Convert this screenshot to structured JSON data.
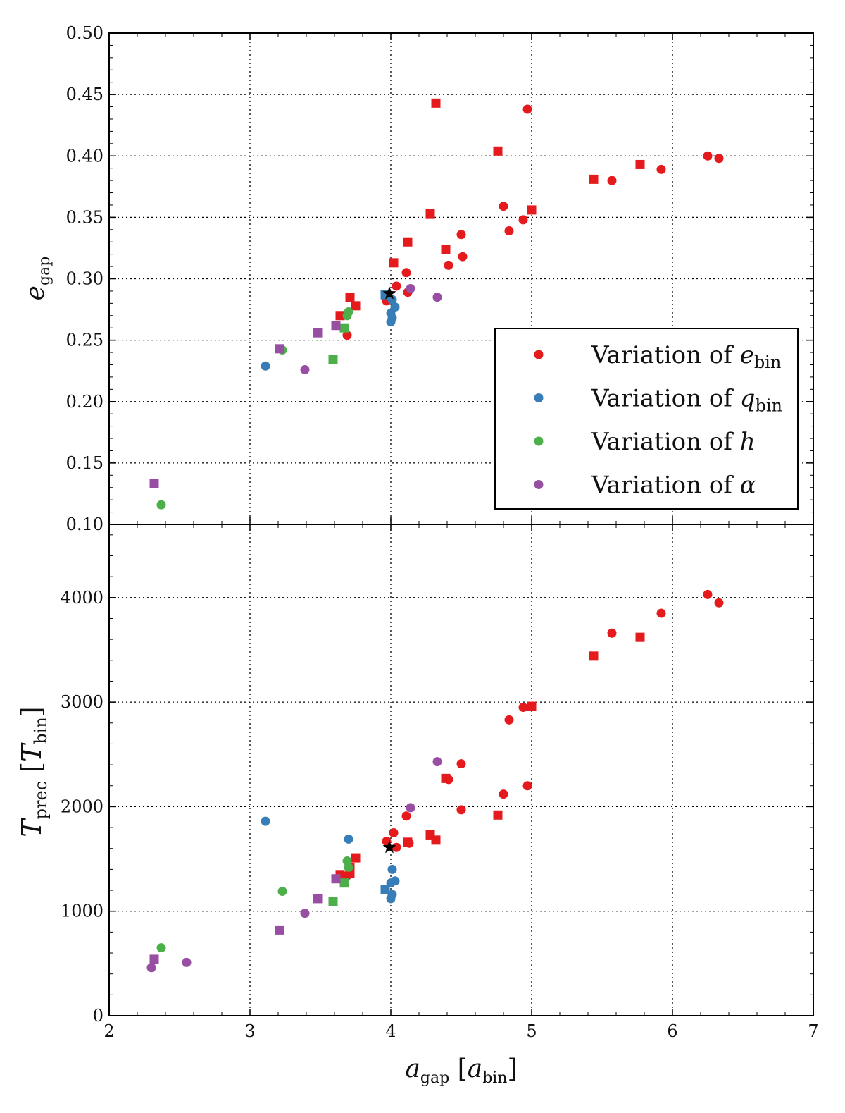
{
  "chart_data": [
    {
      "type": "scatter",
      "panel": "top",
      "xlabel": {
        "main": "a",
        "sub": "gap",
        "bracket_main": "a",
        "bracket_sub": "bin"
      },
      "ylabel": {
        "main": "e",
        "sub": "gap"
      },
      "xlim": [
        2,
        7
      ],
      "ylim": [
        0.1,
        0.5
      ],
      "xticks": [
        2,
        3,
        4,
        5,
        6,
        7
      ],
      "yticks": [
        0.1,
        0.15,
        0.2,
        0.25,
        0.3,
        0.35,
        0.4,
        0.45,
        0.5
      ],
      "ytick_labels": [
        "0.10",
        "0.15",
        "0.20",
        "0.25",
        "0.30",
        "0.35",
        "0.40",
        "0.45",
        "0.50"
      ],
      "grid": true,
      "legend_position": "lower-right",
      "legend": [
        {
          "main": "Variation of ",
          "sym": "e",
          "sub": "bin",
          "color": "#e41a1c"
        },
        {
          "main": "Variation of ",
          "sym": "q",
          "sub": "bin",
          "color": "#377eb8"
        },
        {
          "main": "Variation of ",
          "sym": "h",
          "sub": "",
          "color": "#4daf4a"
        },
        {
          "main": "Variation of ",
          "sym": "α",
          "sub": "",
          "color": "#984ea3"
        }
      ],
      "series": [
        {
          "name": "e_bin",
          "color": "#e41a1c",
          "points": [
            {
              "x": 4.32,
              "y": 0.443,
              "m": "s"
            },
            {
              "x": 4.97,
              "y": 0.438,
              "m": "o"
            },
            {
              "x": 4.76,
              "y": 0.404,
              "m": "s"
            },
            {
              "x": 6.25,
              "y": 0.4,
              "m": "o"
            },
            {
              "x": 6.33,
              "y": 0.398,
              "m": "o"
            },
            {
              "x": 5.77,
              "y": 0.393,
              "m": "s"
            },
            {
              "x": 5.92,
              "y": 0.389,
              "m": "o"
            },
            {
              "x": 5.44,
              "y": 0.381,
              "m": "s"
            },
            {
              "x": 5.57,
              "y": 0.38,
              "m": "o"
            },
            {
              "x": 4.8,
              "y": 0.359,
              "m": "o"
            },
            {
              "x": 5.0,
              "y": 0.356,
              "m": "s"
            },
            {
              "x": 4.28,
              "y": 0.353,
              "m": "s"
            },
            {
              "x": 4.94,
              "y": 0.348,
              "m": "o"
            },
            {
              "x": 4.84,
              "y": 0.339,
              "m": "o"
            },
            {
              "x": 4.5,
              "y": 0.336,
              "m": "o"
            },
            {
              "x": 4.12,
              "y": 0.33,
              "m": "s"
            },
            {
              "x": 4.39,
              "y": 0.324,
              "m": "s"
            },
            {
              "x": 4.51,
              "y": 0.318,
              "m": "o"
            },
            {
              "x": 4.02,
              "y": 0.313,
              "m": "s"
            },
            {
              "x": 4.41,
              "y": 0.311,
              "m": "o"
            },
            {
              "x": 4.11,
              "y": 0.305,
              "m": "o"
            },
            {
              "x": 4.04,
              "y": 0.294,
              "m": "o"
            },
            {
              "x": 4.12,
              "y": 0.289,
              "m": "o"
            },
            {
              "x": 3.71,
              "y": 0.285,
              "m": "s"
            },
            {
              "x": 3.97,
              "y": 0.282,
              "m": "o"
            },
            {
              "x": 3.75,
              "y": 0.278,
              "m": "s"
            },
            {
              "x": 3.64,
              "y": 0.27,
              "m": "s"
            },
            {
              "x": 3.69,
              "y": 0.254,
              "m": "o"
            }
          ]
        },
        {
          "name": "q_bin",
          "color": "#377eb8",
          "points": [
            {
              "x": 3.96,
              "y": 0.287,
              "m": "s"
            },
            {
              "x": 4.01,
              "y": 0.283,
              "m": "o"
            },
            {
              "x": 4.03,
              "y": 0.277,
              "m": "o"
            },
            {
              "x": 4.0,
              "y": 0.272,
              "m": "o"
            },
            {
              "x": 4.01,
              "y": 0.268,
              "m": "o"
            },
            {
              "x": 4.0,
              "y": 0.265,
              "m": "o"
            },
            {
              "x": 3.11,
              "y": 0.229,
              "m": "o"
            }
          ]
        },
        {
          "name": "h",
          "color": "#4daf4a",
          "points": [
            {
              "x": 3.7,
              "y": 0.273,
              "m": "o"
            },
            {
              "x": 3.69,
              "y": 0.27,
              "m": "o"
            },
            {
              "x": 3.67,
              "y": 0.26,
              "m": "s"
            },
            {
              "x": 3.23,
              "y": 0.242,
              "m": "o"
            },
            {
              "x": 3.59,
              "y": 0.234,
              "m": "s"
            },
            {
              "x": 2.37,
              "y": 0.116,
              "m": "o"
            }
          ]
        },
        {
          "name": "alpha",
          "color": "#984ea3",
          "points": [
            {
              "x": 4.14,
              "y": 0.292,
              "m": "o"
            },
            {
              "x": 4.33,
              "y": 0.285,
              "m": "o"
            },
            {
              "x": 3.61,
              "y": 0.262,
              "m": "s"
            },
            {
              "x": 3.48,
              "y": 0.256,
              "m": "s"
            },
            {
              "x": 3.21,
              "y": 0.243,
              "m": "s"
            },
            {
              "x": 3.39,
              "y": 0.226,
              "m": "o"
            },
            {
              "x": 2.32,
              "y": 0.133,
              "m": "s"
            }
          ]
        },
        {
          "name": "fiducial",
          "color": "#000000",
          "points": [
            {
              "x": 3.99,
              "y": 0.288,
              "m": "*"
            }
          ]
        }
      ]
    },
    {
      "type": "scatter",
      "panel": "bottom",
      "xlabel": {
        "main": "a",
        "sub": "gap",
        "bracket_main": "a",
        "bracket_sub": "bin"
      },
      "ylabel": {
        "main": "T",
        "sub": "prec",
        "bracket_main": "T",
        "bracket_sub": "bin"
      },
      "xlim": [
        2,
        7
      ],
      "ylim": [
        0,
        4700
      ],
      "xticks": [
        2,
        3,
        4,
        5,
        6,
        7
      ],
      "xtick_labels": [
        "2",
        "3",
        "4",
        "5",
        "6",
        "7"
      ],
      "yticks": [
        0,
        1000,
        2000,
        3000,
        4000
      ],
      "ytick_labels": [
        "0",
        "1000",
        "2000",
        "3000",
        "4000"
      ],
      "grid": true,
      "series": [
        {
          "name": "e_bin",
          "color": "#e41a1c",
          "points": [
            {
              "x": 6.25,
              "y": 4030,
              "m": "o"
            },
            {
              "x": 6.33,
              "y": 3950,
              "m": "o"
            },
            {
              "x": 5.92,
              "y": 3850,
              "m": "o"
            },
            {
              "x": 5.57,
              "y": 3660,
              "m": "o"
            },
            {
              "x": 5.77,
              "y": 3620,
              "m": "s"
            },
            {
              "x": 5.44,
              "y": 3440,
              "m": "s"
            },
            {
              "x": 5.0,
              "y": 2960,
              "m": "s"
            },
            {
              "x": 4.94,
              "y": 2950,
              "m": "o"
            },
            {
              "x": 4.84,
              "y": 2830,
              "m": "o"
            },
            {
              "x": 4.5,
              "y": 2410,
              "m": "o"
            },
            {
              "x": 4.39,
              "y": 2270,
              "m": "s"
            },
            {
              "x": 4.41,
              "y": 2260,
              "m": "o"
            },
            {
              "x": 4.97,
              "y": 2200,
              "m": "o"
            },
            {
              "x": 4.8,
              "y": 2120,
              "m": "o"
            },
            {
              "x": 4.5,
              "y": 1970,
              "m": "o"
            },
            {
              "x": 4.76,
              "y": 1920,
              "m": "s"
            },
            {
              "x": 4.11,
              "y": 1910,
              "m": "o"
            },
            {
              "x": 4.02,
              "y": 1750,
              "m": "o"
            },
            {
              "x": 4.28,
              "y": 1730,
              "m": "s"
            },
            {
              "x": 4.32,
              "y": 1680,
              "m": "s"
            },
            {
              "x": 3.97,
              "y": 1670,
              "m": "o"
            },
            {
              "x": 4.12,
              "y": 1660,
              "m": "s"
            },
            {
              "x": 4.13,
              "y": 1650,
              "m": "o"
            },
            {
              "x": 4.04,
              "y": 1610,
              "m": "o"
            },
            {
              "x": 3.75,
              "y": 1510,
              "m": "s"
            },
            {
              "x": 3.71,
              "y": 1420,
              "m": "s"
            },
            {
              "x": 3.71,
              "y": 1360,
              "m": "s"
            },
            {
              "x": 3.64,
              "y": 1350,
              "m": "s"
            },
            {
              "x": 3.69,
              "y": 1340,
              "m": "o"
            }
          ]
        },
        {
          "name": "q_bin",
          "color": "#377eb8",
          "points": [
            {
              "x": 3.11,
              "y": 1860,
              "m": "o"
            },
            {
              "x": 3.7,
              "y": 1690,
              "m": "o"
            },
            {
              "x": 4.01,
              "y": 1400,
              "m": "o"
            },
            {
              "x": 4.03,
              "y": 1290,
              "m": "o"
            },
            {
              "x": 4.0,
              "y": 1270,
              "m": "o"
            },
            {
              "x": 3.96,
              "y": 1210,
              "m": "s"
            },
            {
              "x": 4.01,
              "y": 1160,
              "m": "o"
            },
            {
              "x": 4.0,
              "y": 1120,
              "m": "o"
            }
          ]
        },
        {
          "name": "h",
          "color": "#4daf4a",
          "points": [
            {
              "x": 3.69,
              "y": 1480,
              "m": "o"
            },
            {
              "x": 3.7,
              "y": 1420,
              "m": "o"
            },
            {
              "x": 3.67,
              "y": 1270,
              "m": "s"
            },
            {
              "x": 3.23,
              "y": 1190,
              "m": "o"
            },
            {
              "x": 3.59,
              "y": 1090,
              "m": "s"
            },
            {
              "x": 2.37,
              "y": 650,
              "m": "o"
            }
          ]
        },
        {
          "name": "alpha",
          "color": "#984ea3",
          "points": [
            {
              "x": 4.33,
              "y": 2430,
              "m": "o"
            },
            {
              "x": 4.14,
              "y": 1990,
              "m": "o"
            },
            {
              "x": 3.61,
              "y": 1310,
              "m": "s"
            },
            {
              "x": 3.48,
              "y": 1120,
              "m": "s"
            },
            {
              "x": 3.39,
              "y": 980,
              "m": "o"
            },
            {
              "x": 3.21,
              "y": 820,
              "m": "s"
            },
            {
              "x": 2.32,
              "y": 540,
              "m": "s"
            },
            {
              "x": 2.55,
              "y": 510,
              "m": "o"
            },
            {
              "x": 2.3,
              "y": 460,
              "m": "o"
            }
          ]
        },
        {
          "name": "fiducial",
          "color": "#000000",
          "points": [
            {
              "x": 3.99,
              "y": 1610,
              "m": "*"
            }
          ]
        }
      ]
    }
  ]
}
